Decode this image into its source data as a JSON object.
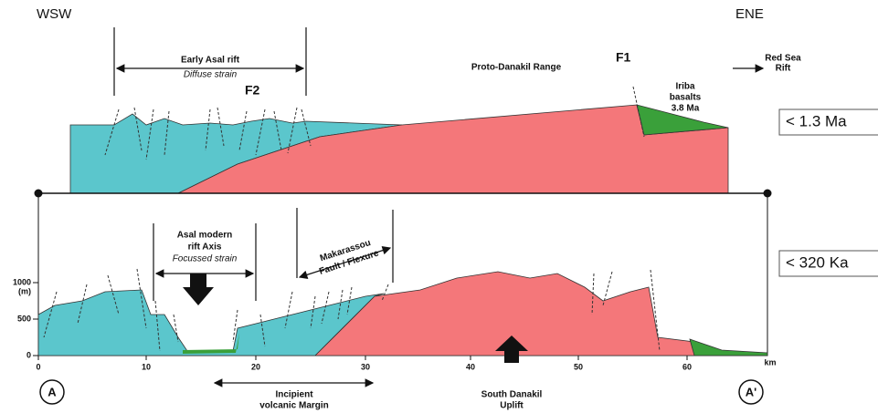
{
  "orientation": {
    "left": "WSW",
    "right": "ENE"
  },
  "top_section": {
    "early_rift": {
      "title": "Early Asal rift",
      "subtitle": "Diffuse strain"
    },
    "fault_f2": "F2",
    "fault_f1": "F1",
    "range": "Proto-Danakil Range",
    "red_sea": [
      "Red Sea",
      "Rift"
    ],
    "iriba": [
      "Iriba",
      "basalts",
      "3.8 Ma"
    ],
    "age": "< 1.3 Ma"
  },
  "bottom_section": {
    "asal_axis": [
      "Asal modern",
      "rift Axis"
    ],
    "asal_strain": "Focussed strain",
    "makarassou": [
      "Makarassou",
      "Fault / Flexure"
    ],
    "age": "< 320 Ka",
    "margin": [
      "Incipient",
      "volcanic Margin"
    ],
    "uplift": [
      "South Danakil",
      "Uplift"
    ]
  },
  "y_axis": {
    "labels": [
      "1000",
      "(m)",
      "500",
      "0"
    ]
  },
  "x_axis": {
    "labels": [
      "0",
      "10",
      "20",
      "30",
      "40",
      "50",
      "60"
    ],
    "unit": "km"
  },
  "endpoints": {
    "start": "A",
    "end": "A'"
  }
}
